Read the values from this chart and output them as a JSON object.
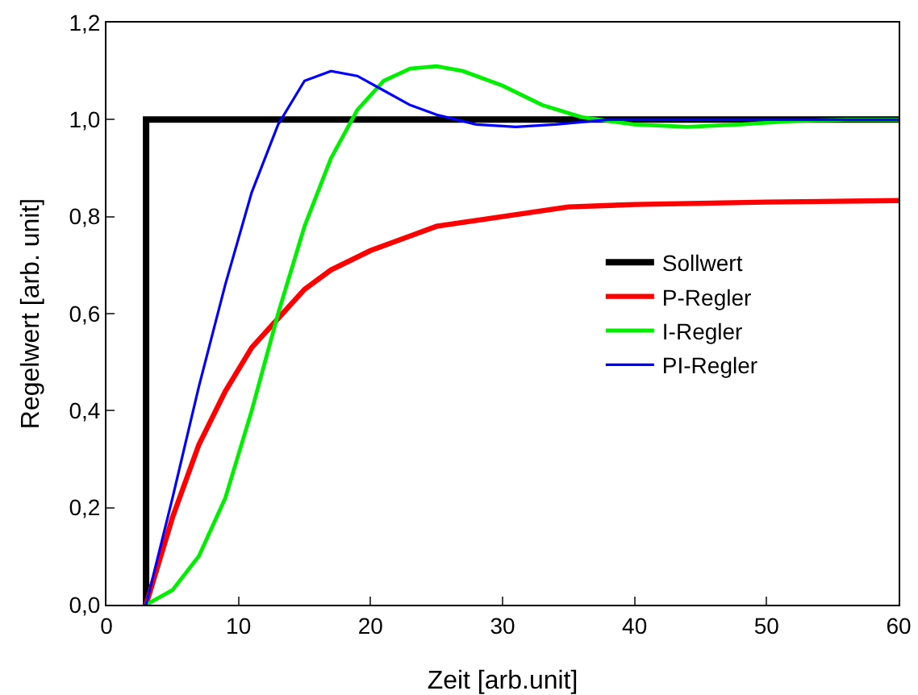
{
  "chart_data": {
    "type": "line",
    "xlabel": "Zeit [arb.unit]",
    "ylabel": "Regelwert [arb. unit]",
    "xlim": [
      0,
      60
    ],
    "xticks": [
      0,
      10,
      20,
      30,
      40,
      50,
      60
    ],
    "ylim": [
      0,
      1.2
    ],
    "yticks": [
      {
        "value": 0,
        "label": "0,0"
      },
      {
        "value": 0.2,
        "label": "0,2"
      },
      {
        "value": 0.4,
        "label": "0,4"
      },
      {
        "value": 0.6,
        "label": "0,6"
      },
      {
        "value": 0.8,
        "label": "0,8"
      },
      {
        "value": 1,
        "label": "1,0"
      },
      {
        "value": 1.2,
        "label": "1,2"
      }
    ],
    "grid": false,
    "legend": "right",
    "marker": "none",
    "line_style": "solid",
    "series": [
      {
        "name": "Sollwert",
        "color": "#000000",
        "x": [
          3,
          3,
          60
        ],
        "values": [
          0,
          1,
          1
        ]
      },
      {
        "name": "P-Regler",
        "color": "#ff0000",
        "x": [
          3,
          5,
          7,
          9,
          11,
          13,
          15,
          17,
          20,
          25,
          30,
          35,
          40,
          50,
          60
        ],
        "values": [
          0,
          0.18,
          0.33,
          0.44,
          0.53,
          0.59,
          0.65,
          0.69,
          0.73,
          0.78,
          0.8,
          0.82,
          0.825,
          0.83,
          0.833
        ]
      },
      {
        "name": "I-Regler",
        "color": "#00ee00",
        "x": [
          3,
          5,
          7,
          9,
          11,
          13,
          15,
          17,
          19,
          21,
          23,
          25,
          27,
          30,
          33,
          36,
          40,
          44,
          48,
          52,
          56,
          60
        ],
        "values": [
          0,
          0.03,
          0.1,
          0.22,
          0.4,
          0.6,
          0.78,
          0.92,
          1.02,
          1.08,
          1.105,
          1.11,
          1.1,
          1.07,
          1.03,
          1.005,
          0.99,
          0.985,
          0.99,
          0.997,
          1,
          1
        ]
      },
      {
        "name": "PI-Regler",
        "color": "#0000ff",
        "x": [
          3,
          5,
          7,
          9,
          11,
          13,
          15,
          17,
          19,
          21,
          23,
          25,
          28,
          31,
          34,
          38,
          45,
          60
        ],
        "values": [
          0,
          0.22,
          0.45,
          0.66,
          0.85,
          0.99,
          1.08,
          1.1,
          1.09,
          1.06,
          1.03,
          1.01,
          0.99,
          0.985,
          0.99,
          1,
          1,
          1
        ]
      }
    ]
  }
}
